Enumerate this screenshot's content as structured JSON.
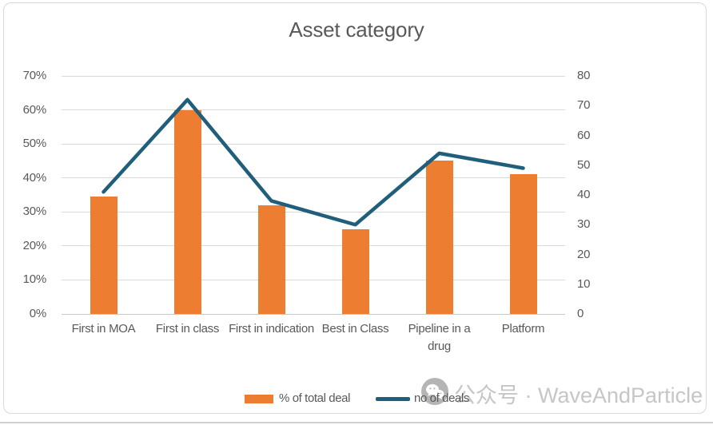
{
  "chart": {
    "title": "Asset category"
  },
  "chart_data": {
    "type": "combo-bar-line",
    "title": "Asset category",
    "categories": [
      "First in MOA",
      "First in class",
      "First in indication",
      "Best in Class",
      "Pipeline in a drug",
      "Platform"
    ],
    "series": [
      {
        "name": "% of total deal",
        "type": "bar",
        "axis": "left",
        "unit": "%",
        "values": [
          34.5,
          60,
          32,
          25,
          45,
          41
        ]
      },
      {
        "name": "no of deals",
        "type": "line",
        "axis": "right",
        "values": [
          41,
          72,
          38,
          30,
          54,
          49
        ]
      }
    ],
    "left_axis": {
      "min": 0,
      "max": 70,
      "step": 10,
      "format": "percent",
      "tick_labels": [
        "0%",
        "10%",
        "20%",
        "30%",
        "40%",
        "50%",
        "60%",
        "70%"
      ]
    },
    "right_axis": {
      "min": 0,
      "max": 80,
      "step": 10,
      "tick_labels": [
        "0",
        "10",
        "20",
        "30",
        "40",
        "50",
        "60",
        "70",
        "80"
      ]
    },
    "grid": true,
    "legend_position": "bottom"
  },
  "watermark": {
    "icon": "wechat-icon",
    "text": "公众号 · WaveAndParticle"
  },
  "colors": {
    "bar": "#ED7D31",
    "line": "#1F5F7B",
    "grid": "#D9D9D9",
    "axis_line": "#C9C9C9",
    "text": "#595959",
    "border": "#D9D9D9",
    "watermark_text": "#C6C6C6",
    "watermark_icon": "#B5B5B5"
  }
}
